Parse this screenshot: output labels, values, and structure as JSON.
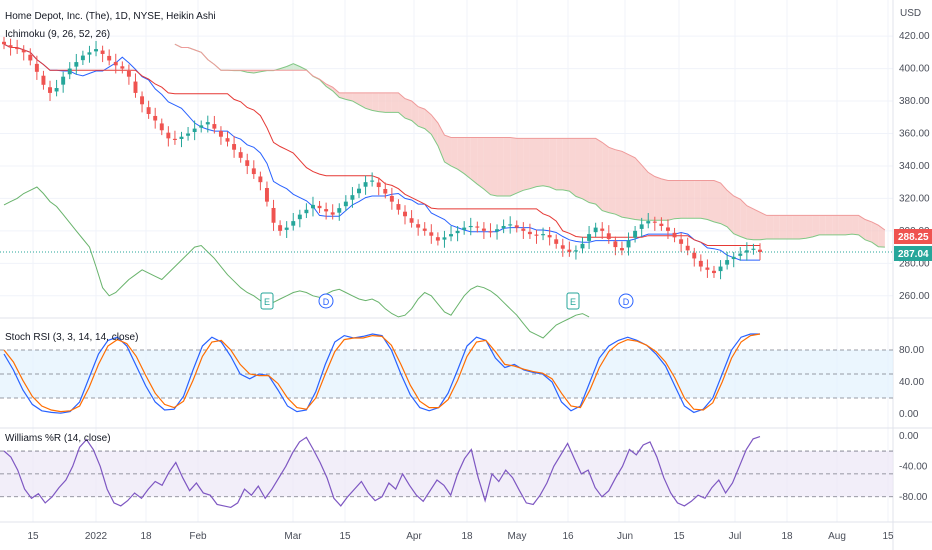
{
  "header": {
    "title": "Home Depot, Inc. (The), 1D, NYSE, Heikin Ashi",
    "ichimoku_label": "Ichimoku (9, 26, 52, 26)",
    "currency": "USD"
  },
  "colors": {
    "up": "#26a69a",
    "down": "#ef5350",
    "conversion": "#2962ff",
    "base": "#e53935",
    "lagging": "#43a047",
    "cloud_bear": "#f7c7c4",
    "cloud_bull": "#c8e6c9",
    "stoch_k": "#2962ff",
    "stoch_d": "#ff6d00",
    "stoch_band": "#e3f2fd",
    "williams_line": "#7e57c2",
    "williams_band": "#ede7f6",
    "tag_red": "#ef5350",
    "tag_green": "#26a69a"
  },
  "chart_data": [
    {
      "type": "candlestick",
      "title": "Home Depot, Inc. (The), 1D, NYSE, Heikin Ashi",
      "ylim": [
        250,
        425
      ],
      "y_ticks": [
        260,
        280,
        300,
        320,
        340,
        360,
        380,
        400,
        420
      ],
      "y_tick_labels": [
        "260.00",
        "280.00",
        "300.00",
        "320.00",
        "340.00",
        "360.00",
        "380.00",
        "400.00",
        "420.00"
      ],
      "x_ticks": [
        "15",
        "2022",
        "18",
        "Feb",
        "Mar",
        "15",
        "Apr",
        "18",
        "May",
        "16",
        "Jun",
        "15",
        "Jul",
        "18",
        "Aug",
        "15"
      ],
      "last_price_labels": [
        "288.25",
        "287.04"
      ],
      "event_markers": [
        {
          "label": "E",
          "kind": "earnings"
        },
        {
          "label": "D",
          "kind": "dividend"
        },
        {
          "label": "E",
          "kind": "earnings"
        },
        {
          "label": "D",
          "kind": "dividend"
        }
      ],
      "close": [
        415,
        413,
        412,
        410,
        405,
        398,
        390,
        385,
        388,
        395,
        400,
        404,
        408,
        410,
        412,
        409,
        405,
        402,
        400,
        395,
        385,
        378,
        372,
        368,
        362,
        357,
        356,
        358,
        360,
        363,
        365,
        367,
        363,
        358,
        355,
        350,
        345,
        340,
        335,
        330,
        318,
        305,
        300,
        302,
        306,
        310,
        313,
        316,
        314,
        312,
        310,
        314,
        318,
        322,
        326,
        330,
        331,
        327,
        323,
        318,
        313,
        309,
        305,
        302,
        300,
        297,
        294,
        296,
        298,
        300,
        302,
        303,
        302,
        300,
        299,
        301,
        303,
        304,
        302,
        300,
        298,
        297,
        298,
        296,
        292,
        289,
        287,
        288,
        292,
        298,
        302,
        300,
        295,
        290,
        288,
        294,
        300,
        304,
        306,
        305,
        303,
        300,
        296,
        292,
        288,
        283,
        278,
        276,
        274,
        278,
        282,
        284,
        286,
        288,
        289,
        287
      ],
      "ichimoku_lines": [
        "Conversion",
        "Base",
        "Lagging Span",
        "Cloud"
      ]
    },
    {
      "type": "line",
      "title": "Stoch RSI (3, 3, 14, 14, close)",
      "ylim": [
        -5,
        105
      ],
      "y_ticks": [
        0,
        40,
        80
      ],
      "y_tick_labels": [
        "0.00",
        "40.00",
        "80.00"
      ],
      "bands": [
        20,
        50,
        80
      ],
      "series": [
        {
          "values": [
            75,
            55,
            30,
            12,
            4,
            2,
            1,
            3,
            15,
            45,
            75,
            92,
            96,
            85,
            60,
            35,
            15,
            5,
            6,
            22,
            55,
            85,
            96,
            90,
            72,
            50,
            44,
            50,
            48,
            30,
            10,
            3,
            5,
            28,
            62,
            90,
            98,
            95,
            97,
            100,
            98,
            80,
            50,
            24,
            8,
            4,
            8,
            26,
            55,
            85,
            96,
            92,
            70,
            58,
            62,
            55,
            52,
            50,
            40,
            15,
            4,
            10,
            40,
            70,
            85,
            92,
            96,
            92,
            86,
            75,
            60,
            35,
            10,
            2,
            6,
            20,
            50,
            80,
            96,
            100,
            100
          ]
        },
        {
          "values": [
            80,
            65,
            42,
            22,
            10,
            5,
            3,
            4,
            10,
            33,
            62,
            85,
            93,
            88,
            72,
            48,
            26,
            12,
            8,
            16,
            42,
            72,
            90,
            92,
            80,
            62,
            50,
            48,
            48,
            38,
            20,
            8,
            6,
            20,
            50,
            78,
            93,
            95,
            95,
            98,
            97,
            86,
            62,
            36,
            16,
            8,
            8,
            18,
            42,
            72,
            90,
            92,
            78,
            62,
            60,
            56,
            53,
            51,
            44,
            26,
            10,
            8,
            30,
            58,
            78,
            88,
            93,
            91,
            86,
            78,
            65,
            45,
            20,
            6,
            5,
            14,
            40,
            70,
            90,
            98,
            100
          ]
        }
      ]
    },
    {
      "type": "line",
      "title": "Williams %R (14, close)",
      "ylim": [
        -100,
        5
      ],
      "y_ticks": [
        0,
        -40,
        -80
      ],
      "y_tick_labels": [
        "0.00",
        "-40.00",
        "-80.00"
      ],
      "bands": [
        -20,
        -50,
        -80
      ],
      "series": [
        {
          "values": [
            -20,
            -28,
            -45,
            -70,
            -82,
            -76,
            -88,
            -80,
            -68,
            -58,
            -40,
            -15,
            -5,
            -18,
            -40,
            -70,
            -88,
            -92,
            -85,
            -75,
            -82,
            -70,
            -60,
            -65,
            -48,
            -35,
            -55,
            -72,
            -62,
            -75,
            -78,
            -90,
            -92,
            -94,
            -88,
            -70,
            -78,
            -66,
            -82,
            -70,
            -55,
            -40,
            -22,
            -8,
            -2,
            -18,
            -35,
            -55,
            -82,
            -92,
            -80,
            -70,
            -60,
            -75,
            -85,
            -80,
            -62,
            -70,
            -50,
            -65,
            -78,
            -86,
            -72,
            -58,
            -65,
            -78,
            -50,
            -30,
            -18,
            -55,
            -85,
            -50,
            -60,
            -45,
            -55,
            -72,
            -88,
            -90,
            -78,
            -62,
            -40,
            -25,
            -10,
            -30,
            -50,
            -45,
            -68,
            -80,
            -72,
            -55,
            -40,
            -18,
            -25,
            -12,
            -8,
            -28,
            -55,
            -75,
            -88,
            -92,
            -86,
            -78,
            -82,
            -68,
            -58,
            -75,
            -62,
            -40,
            -18,
            -4,
            -1
          ]
        }
      ]
    }
  ]
}
